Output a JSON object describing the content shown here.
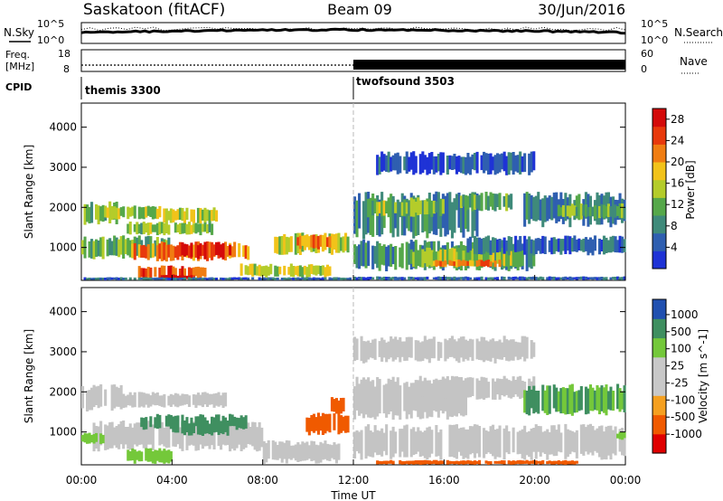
{
  "header": {
    "station": "Saskatoon (fitACF)",
    "beam": "Beam 09",
    "date": "30/Jun/2016"
  },
  "noise_panel": {
    "left_label": "N.Sky",
    "right_label": "N.Search",
    "ticks": [
      "10^5",
      "10^0"
    ]
  },
  "freq_panel": {
    "left_label_1": "Freq.",
    "left_label_2": "[MHz]",
    "right_label": "Nave",
    "left_ticks": [
      "18",
      "8"
    ],
    "right_ticks": [
      "60",
      "0"
    ]
  },
  "cpid_panel": {
    "label": "CPID",
    "modes": [
      {
        "name": "themis 3300",
        "start_ut": "00:00"
      },
      {
        "name": "twofsound 3503",
        "start_ut": "12:00"
      }
    ]
  },
  "colors": {
    "power": [
      "#1f33d6",
      "#2f5fb0",
      "#3f8a7a",
      "#56a84a",
      "#b4cc2a",
      "#f2c31a",
      "#f07d12",
      "#e8390c",
      "#d40a0a"
    ],
    "velocity": [
      "#e00000",
      "#f05a00",
      "#f5a020",
      "#c8c8c8",
      "#c8c8c8",
      "#74c83a",
      "#3f8f60",
      "#2050b0"
    ],
    "ground_scatter": "#c4c4c4"
  },
  "chart_data": [
    {
      "type": "heatmap",
      "panel": "power",
      "ylabel": "Slant Range [km]",
      "yticks": [
        1000,
        2000,
        3000,
        4000
      ],
      "ylim": [
        180,
        4600
      ],
      "xlim_hours": [
        0,
        24
      ],
      "colorbar": {
        "label": "Power [dB]",
        "ticks": [
          "4",
          "8",
          "12",
          "16",
          "20",
          "24",
          "28"
        ],
        "range": [
          0,
          30
        ]
      },
      "regions": [
        {
          "t0": 0.0,
          "t1": 1.6,
          "r0": 1550,
          "r1": 2150,
          "level": 12
        },
        {
          "t0": 1.0,
          "t1": 3.5,
          "r0": 1700,
          "r1": 2050,
          "level": 14
        },
        {
          "t0": 2.0,
          "t1": 5.8,
          "r0": 1300,
          "r1": 1650,
          "level": 13
        },
        {
          "t0": 3.5,
          "t1": 6.0,
          "r0": 1600,
          "r1": 2000,
          "level": 15
        },
        {
          "t0": 0.0,
          "t1": 4.0,
          "r0": 700,
          "r1": 1300,
          "level": 11
        },
        {
          "t0": 2.2,
          "t1": 7.4,
          "r0": 650,
          "r1": 1150,
          "level": 22
        },
        {
          "t0": 4.3,
          "t1": 6.6,
          "r0": 700,
          "r1": 1150,
          "level": 28
        },
        {
          "t0": 2.5,
          "t1": 5.5,
          "r0": 200,
          "r1": 550,
          "level": 24
        },
        {
          "t0": 3.5,
          "t1": 5.0,
          "r0": 180,
          "r1": 330,
          "level": 29
        },
        {
          "t0": 8.5,
          "t1": 11.8,
          "r0": 800,
          "r1": 1400,
          "level": 16
        },
        {
          "t0": 9.5,
          "t1": 11.0,
          "r0": 950,
          "r1": 1350,
          "level": 21
        },
        {
          "t0": 7.0,
          "t1": 11.0,
          "r0": 250,
          "r1": 600,
          "level": 16
        },
        {
          "t0": 0.0,
          "t1": 12.0,
          "r0": 180,
          "r1": 260,
          "level": 6
        },
        {
          "t0": 12.0,
          "t1": 24.0,
          "r0": 180,
          "r1": 280,
          "level": 5
        },
        {
          "t0": 12.0,
          "t1": 17.5,
          "r0": 1200,
          "r1": 2400,
          "level": 8
        },
        {
          "t0": 12.6,
          "t1": 16.0,
          "r0": 1750,
          "r1": 2250,
          "level": 13
        },
        {
          "t0": 12.0,
          "t1": 20.0,
          "r0": 400,
          "r1": 1200,
          "level": 9
        },
        {
          "t0": 14.5,
          "t1": 19.5,
          "r0": 500,
          "r1": 1000,
          "level": 14
        },
        {
          "t0": 15.5,
          "t1": 18.5,
          "r0": 500,
          "r1": 700,
          "level": 22
        },
        {
          "t0": 16.5,
          "t1": 19.0,
          "r0": 1900,
          "r1": 2400,
          "level": 11
        },
        {
          "t0": 19.5,
          "t1": 24.0,
          "r0": 1500,
          "r1": 2400,
          "level": 8
        },
        {
          "t0": 21.0,
          "t1": 24.0,
          "r0": 1700,
          "r1": 2100,
          "level": 12
        },
        {
          "t0": 17.0,
          "t1": 24.0,
          "r0": 800,
          "r1": 1300,
          "level": 6
        },
        {
          "t0": 13.0,
          "t1": 20.0,
          "r0": 2800,
          "r1": 3400,
          "level": 4
        }
      ]
    },
    {
      "type": "heatmap",
      "panel": "velocity",
      "ylabel": "Slant Range [km]",
      "yticks": [
        1000,
        2000,
        3000,
        4000
      ],
      "ylim": [
        180,
        4600
      ],
      "xlim_hours": [
        0,
        24
      ],
      "xlabel": "Time UT",
      "xticks": [
        "00:00",
        "04:00",
        "08:00",
        "12:00",
        "16:00",
        "20:00",
        "00:00"
      ],
      "colorbar": {
        "label": "Velocity [m s^-1]",
        "ticks": [
          "1000",
          "500",
          "100",
          "25",
          "-25",
          "-100",
          "-500",
          "-1000"
        ]
      },
      "regions": [
        {
          "t0": 0.0,
          "t1": 1.8,
          "r0": 1500,
          "r1": 2200,
          "v": 0,
          "gs": true
        },
        {
          "t0": 1.5,
          "t1": 6.5,
          "r0": 1600,
          "r1": 2000,
          "v": 0,
          "gs": true
        },
        {
          "t0": 0.5,
          "t1": 8.0,
          "r0": 500,
          "r1": 1300,
          "v": 0,
          "gs": true
        },
        {
          "t0": 2.5,
          "t1": 7.3,
          "r0": 1050,
          "r1": 1450,
          "v": 150
        },
        {
          "t0": 4.0,
          "t1": 6.5,
          "r0": 900,
          "r1": 1300,
          "v": 300
        },
        {
          "t0": 2.0,
          "t1": 4.0,
          "r0": 200,
          "r1": 600,
          "v": 60
        },
        {
          "t0": 0.0,
          "t1": 1.0,
          "r0": 700,
          "r1": 1000,
          "v": 60
        },
        {
          "t0": 9.8,
          "t1": 11.8,
          "r0": 900,
          "r1": 1500,
          "v": -300
        },
        {
          "t0": 11.0,
          "t1": 11.6,
          "r0": 1400,
          "r1": 1900,
          "v": -200
        },
        {
          "t0": 8.0,
          "t1": 11.5,
          "r0": 200,
          "r1": 800,
          "v": 0,
          "gs": true
        },
        {
          "t0": 12.0,
          "t1": 24.0,
          "r0": 300,
          "r1": 1200,
          "v": 0,
          "gs": true
        },
        {
          "t0": 12.0,
          "t1": 17.0,
          "r0": 1300,
          "r1": 2400,
          "v": 0,
          "gs": true
        },
        {
          "t0": 15.0,
          "t1": 20.0,
          "r0": 1800,
          "r1": 2400,
          "v": 0,
          "gs": true
        },
        {
          "t0": 19.5,
          "t1": 24.0,
          "r0": 1400,
          "r1": 2200,
          "v": 100
        },
        {
          "t0": 12.0,
          "t1": 20.0,
          "r0": 2700,
          "r1": 3400,
          "v": 0,
          "gs": true
        },
        {
          "t0": 13.0,
          "t1": 22.0,
          "r0": 180,
          "r1": 300,
          "v": -150
        },
        {
          "t0": 23.6,
          "t1": 24.0,
          "r0": 800,
          "r1": 1000,
          "v": 60
        }
      ]
    }
  ]
}
